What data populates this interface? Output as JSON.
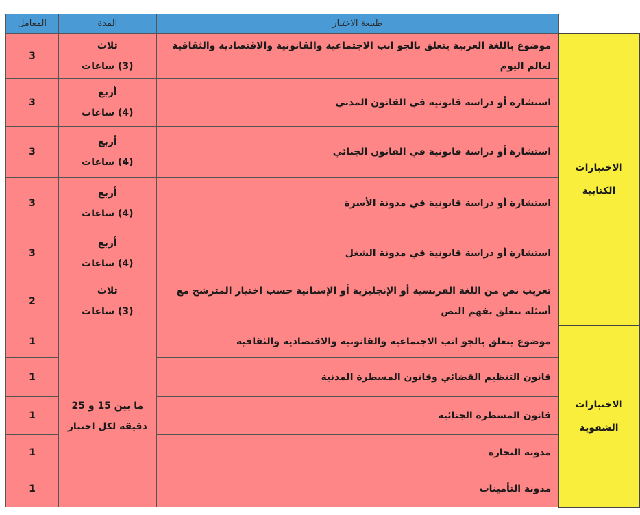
{
  "header": {
    "subject": "طبيعة الاختيار",
    "duration": "المدة",
    "coefficient": "المعامل"
  },
  "written": {
    "category": [
      "الاختبارات",
      "الكتابية"
    ],
    "rows": [
      {
        "subject": "موضوع باللغة العربية يتعلق بالجو انب الاجتماعية والقانونية والاقتصادية والثقافية لعالم اليوم",
        "duration_word": "ثلاث",
        "duration_hours": "(3) ساعات",
        "coefficient": "3"
      },
      {
        "subject": "استشارة أو دراسة قانونية في القانون المدني",
        "duration_word": "أربع",
        "duration_hours": "(4) ساعات",
        "coefficient": "3"
      },
      {
        "subject": "استشارة أو دراسة قانونية في القانون الجنائي",
        "duration_word": "أربع",
        "duration_hours": "(4) ساعات",
        "coefficient": "3"
      },
      {
        "subject": "استشارة أو دراسة قانونية في مدونة الأسرة",
        "duration_word": "أربع",
        "duration_hours": "(4) ساعات",
        "coefficient": "3"
      },
      {
        "subject": "استشارة أو دراسة قانونية في مدونة الشغل",
        "duration_word": "أربع",
        "duration_hours": "(4) ساعات",
        "coefficient": "3"
      },
      {
        "subject": "تعريب نص من اللغة الفرنسية أو الإنجليزية أو الإسبانية حسب اختيار المترشح مع أسئلة تتعلق بفهم النص",
        "duration_word": "ثلاث",
        "duration_hours": "(3) ساعات",
        "coefficient": "2"
      }
    ]
  },
  "oral": {
    "category": [
      "الاختبارات",
      "الشفوية"
    ],
    "duration": [
      "ما بين 15 و 25",
      "دقيقة لكل اختبار"
    ],
    "rows": [
      {
        "subject": "موضوع يتعلق بالجو انب الاجتماعية والقانونية والاقتصادية والثقافية",
        "coefficient": "1"
      },
      {
        "subject": "قانون التنظيم القضائي وقانون المسطرة المدنية",
        "coefficient": "1"
      },
      {
        "subject": "قانون المسطرة الجنائية",
        "coefficient": "1"
      },
      {
        "subject": "مدونة التجارة",
        "coefficient": "1"
      },
      {
        "subject": "مدونة التأمينات",
        "coefficient": "1"
      }
    ]
  },
  "colors": {
    "header": "#4a9ad6",
    "rows": "#ff8686",
    "category": "#f9ee3c"
  }
}
